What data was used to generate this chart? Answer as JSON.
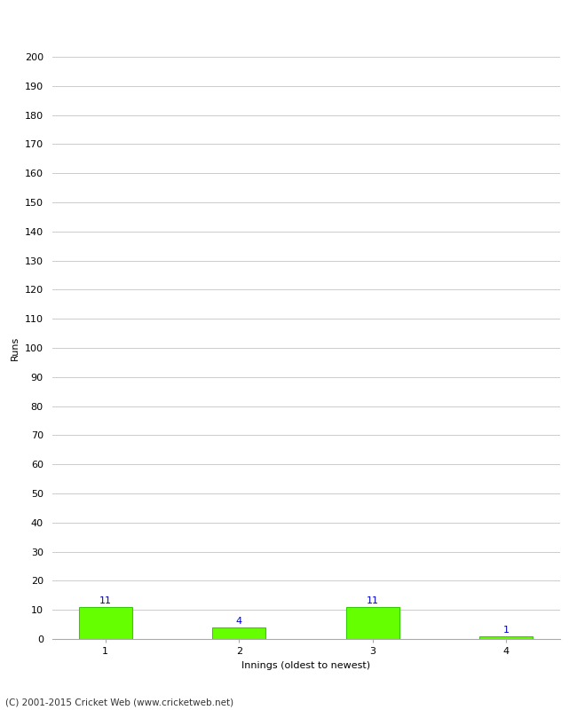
{
  "categories": [
    "1",
    "2",
    "3",
    "4"
  ],
  "values": [
    11,
    4,
    11,
    1
  ],
  "bar_color": "#66ff00",
  "bar_edge_color": "#33cc00",
  "label_color": "#0000cc",
  "ylabel": "Runs",
  "xlabel": "Innings (oldest to newest)",
  "ylim": [
    0,
    200
  ],
  "ytick_step": 10,
  "background_color": "#ffffff",
  "grid_color": "#cccccc",
  "footer_text": "(C) 2001-2015 Cricket Web (www.cricketweb.net)",
  "label_fontsize": 8,
  "axis_fontsize": 8,
  "footer_fontsize": 7.5,
  "fig_width": 6.5,
  "fig_height": 8.0,
  "dpi": 100
}
